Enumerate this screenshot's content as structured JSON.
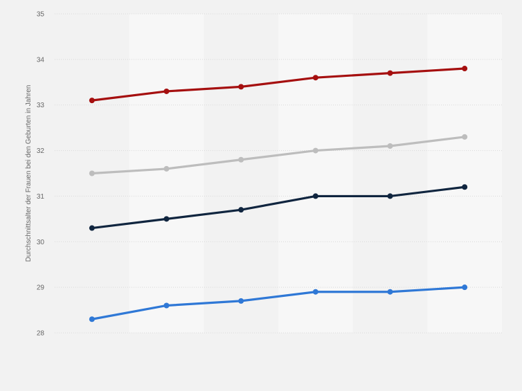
{
  "chart_data": {
    "type": "line",
    "title": "",
    "xlabel": "",
    "ylabel": "Durchschnittsalter der Frauen bei den Geburten in Jahren",
    "ylim": [
      28,
      35
    ],
    "yticks": [
      28,
      29,
      30,
      31,
      32,
      33,
      34,
      35
    ],
    "x": [
      1,
      2,
      3,
      4,
      5,
      6
    ],
    "grid": true,
    "legend": "none",
    "series": [
      {
        "color": "#a50f0f",
        "values": [
          33.1,
          33.3,
          33.4,
          33.6,
          33.7,
          33.8
        ]
      },
      {
        "color": "#bdbdbd",
        "values": [
          31.5,
          31.6,
          31.8,
          32.0,
          32.1,
          32.3
        ]
      },
      {
        "color": "#10253f",
        "values": [
          30.3,
          30.5,
          30.7,
          31.0,
          31.0,
          31.2
        ]
      },
      {
        "color": "#2f78d6",
        "values": [
          28.3,
          28.6,
          28.7,
          28.9,
          28.9,
          29.0
        ]
      }
    ]
  }
}
